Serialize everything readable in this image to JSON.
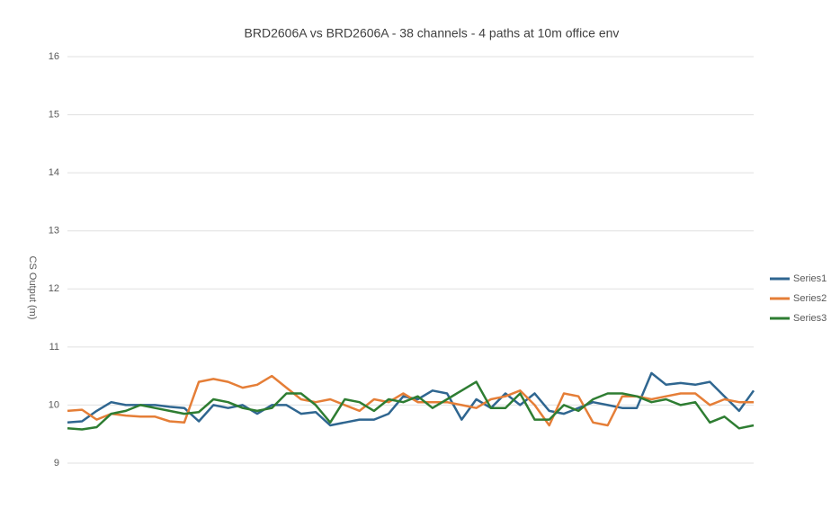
{
  "chart_data": {
    "type": "line",
    "title": "BRD2606A vs BRD2606A - 38 channels - 4 paths at 10m office env",
    "y_label": "CS Output (m)",
    "categories": [
      null,
      null,
      null,
      null,
      null,
      null,
      null,
      null,
      null,
      null,
      null,
      null,
      null,
      null,
      null,
      null,
      null,
      null,
      null,
      null,
      null,
      null,
      null,
      null,
      null,
      null,
      null,
      null,
      null,
      null,
      null,
      null,
      null,
      null,
      null,
      null,
      null,
      null,
      null,
      null,
      null,
      null,
      null,
      null,
      null,
      null,
      null,
      null
    ],
    "series": [
      {
        "name": "Series1",
        "color": "#2f6690",
        "values": [
          9.7,
          9.72,
          9.9,
          10.05,
          10.0,
          10.0,
          10.0,
          9.97,
          9.95,
          9.72,
          10.0,
          9.95,
          10.0,
          9.85,
          10.0,
          10.0,
          9.85,
          9.88,
          9.65,
          9.7,
          9.75,
          9.75,
          9.85,
          10.15,
          10.1,
          10.25,
          10.2,
          9.75,
          10.1,
          9.95,
          10.2,
          10.0,
          10.2,
          9.9,
          9.85,
          9.95,
          10.05,
          10.0,
          9.95,
          9.95,
          10.55,
          10.35,
          10.38,
          10.35,
          10.4,
          10.15,
          9.9,
          10.25
        ]
      },
      {
        "name": "Series2",
        "color": "#e57e37",
        "values": [
          9.9,
          9.92,
          9.75,
          9.85,
          9.82,
          9.8,
          9.8,
          9.72,
          9.7,
          10.4,
          10.45,
          10.4,
          10.3,
          10.35,
          10.5,
          10.3,
          10.1,
          10.05,
          10.1,
          10.0,
          9.9,
          10.1,
          10.05,
          10.2,
          10.05,
          10.05,
          10.05,
          10.0,
          9.95,
          10.1,
          10.15,
          10.25,
          10.0,
          9.65,
          10.2,
          10.15,
          9.7,
          9.65,
          10.15,
          10.15,
          10.1,
          10.15,
          10.2,
          10.2,
          10.0,
          10.1,
          10.05,
          10.05
        ]
      },
      {
        "name": "Series3",
        "color": "#2e7d32",
        "values": [
          9.6,
          9.58,
          9.62,
          9.85,
          9.9,
          10.0,
          9.95,
          9.9,
          9.85,
          9.88,
          10.1,
          10.05,
          9.95,
          9.9,
          9.95,
          10.2,
          10.2,
          10.0,
          9.7,
          10.1,
          10.05,
          9.9,
          10.1,
          10.05,
          10.15,
          9.95,
          10.1,
          10.25,
          10.4,
          9.95,
          9.95,
          10.2,
          9.75,
          9.75,
          10.0,
          9.9,
          10.1,
          10.2,
          10.2,
          10.15,
          10.05,
          10.1,
          10.0,
          10.05,
          9.7,
          9.8,
          9.6,
          9.65
        ]
      }
    ],
    "ylim": [
      9,
      16
    ],
    "yticks": [
      9,
      10,
      11,
      12,
      13,
      14,
      15,
      16
    ],
    "grid": true,
    "legend": "right"
  }
}
